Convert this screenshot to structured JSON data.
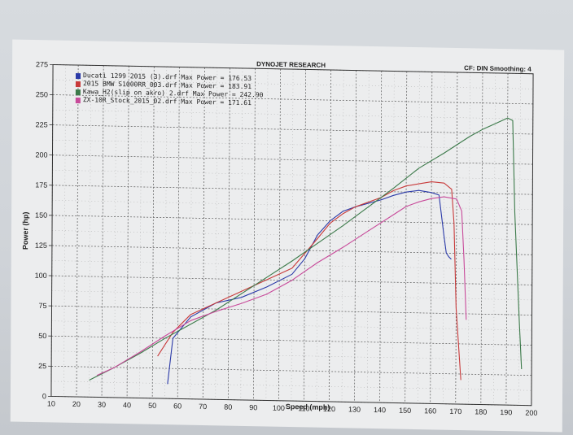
{
  "chart_data": {
    "type": "line",
    "title": "DYNOJET RESEARCH",
    "header_right": "CF: DIN  Smoothing: 4",
    "xlabel": "Speed (mph)",
    "ylabel": "Power (hp)",
    "xlim": [
      10,
      200
    ],
    "ylim": [
      0,
      275
    ],
    "x_ticks": [
      10,
      20,
      30,
      40,
      50,
      60,
      70,
      80,
      90,
      100,
      110,
      120,
      130,
      140,
      150,
      160,
      170,
      180,
      190,
      200
    ],
    "y_ticks": [
      0,
      25,
      50,
      75,
      100,
      125,
      150,
      175,
      200,
      225,
      250,
      275
    ],
    "grid": true,
    "legend_position": "top-left",
    "series": [
      {
        "name": "Ducati 1299 2015 (3).drf Max Power = 176.53",
        "color": "#2b3aa8",
        "x": [
          56,
          58,
          65,
          75,
          85,
          95,
          105,
          110,
          115,
          120,
          125,
          130,
          140,
          145,
          150,
          155,
          160,
          163,
          165,
          166,
          167,
          168
        ],
        "y": [
          12,
          50,
          68,
          80,
          85,
          94,
          105,
          118,
          138,
          150,
          158,
          162,
          168,
          172,
          175,
          176.5,
          175,
          173,
          140,
          125,
          122,
          120
        ]
      },
      {
        "name": "2015 BMW S1000RR_003.drf Max Power = 183.91",
        "color": "#c83a3a",
        "x": [
          52,
          58,
          65,
          75,
          85,
          95,
          105,
          115,
          120,
          125,
          130,
          140,
          145,
          150,
          155,
          160,
          165,
          168,
          169,
          170,
          172
        ],
        "y": [
          35,
          55,
          70,
          80,
          90,
          100,
          110,
          135,
          148,
          156,
          162,
          170,
          176,
          180,
          182,
          183.9,
          183,
          178,
          150,
          80,
          20
        ]
      },
      {
        "name": "Kawa_H2(slip on akro) 2.drf Max Power = 242.90",
        "color": "#3c7a4a",
        "x": [
          25,
          35,
          45,
          55,
          65,
          75,
          85,
          95,
          105,
          115,
          125,
          135,
          145,
          155,
          165,
          175,
          180,
          185,
          188,
          190,
          192,
          193,
          195,
          196
        ],
        "y": [
          14,
          25,
          37,
          50,
          62,
          74,
          88,
          102,
          116,
          131,
          146,
          162,
          178,
          195,
          208,
          222,
          228,
          233,
          236,
          238,
          236,
          160,
          70,
          30
        ]
      },
      {
        "name": "ZX-10R_Stock_2015_02.drf Max Power = 171.61",
        "color": "#c84a9a",
        "x": [
          28,
          35,
          45,
          55,
          65,
          75,
          85,
          95,
          105,
          115,
          125,
          135,
          145,
          150,
          155,
          160,
          165,
          170,
          172,
          173,
          174
        ],
        "y": [
          18,
          25,
          38,
          52,
          65,
          73,
          80,
          88,
          100,
          115,
          128,
          142,
          156,
          163,
          167,
          170,
          171.6,
          170,
          160,
          120,
          70
        ]
      }
    ]
  }
}
